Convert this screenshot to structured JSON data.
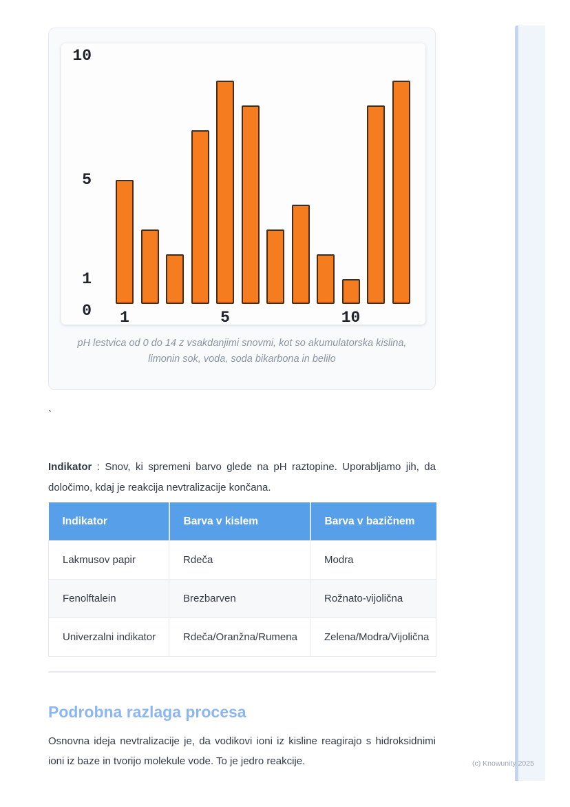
{
  "colors": {
    "bar_fill": "#F57D20",
    "bar_border": "#4A2B0E",
    "card_bg": "#F8FAFC",
    "card_border": "#E5EAF0",
    "caption_gray": "#8A94A4",
    "text_dark": "#333B47",
    "table_header_bg": "#57A0E9",
    "table_border": "#E5E9EE",
    "row_alt": "#F6F8FA",
    "divider": "#E7EAEE",
    "heading_blue": "#8CB6F2",
    "watermark_gray": "#9CA5B2",
    "rightbar_fill": "#F0F5FC",
    "rightbar_edge": "#C3D6ED"
  },
  "chart_data": {
    "type": "bar",
    "x": [
      1,
      2,
      3,
      4,
      5,
      6,
      7,
      8,
      9,
      10,
      11,
      12
    ],
    "values": [
      5,
      3,
      2,
      7,
      9,
      8,
      3,
      4,
      2,
      1,
      8,
      9
    ],
    "xticks": [
      1,
      5,
      10
    ],
    "yticks": [
      0,
      1,
      5,
      10
    ],
    "ylim": [
      0,
      10
    ],
    "grid": false,
    "legend": "none",
    "title": "",
    "xlabel": "",
    "ylabel": "",
    "bar_color": "#F57D20",
    "bar_border_color": "#4A2B0E"
  },
  "figure": {
    "caption_lines": [
      "pH lestvica od 0 do 14 z vsakdanjimi snovmi, kot so akumulatorska kislina,",
      "limonin sok, voda, soda bikarbona in belilo"
    ]
  },
  "stray_char": "`",
  "definition": {
    "term": "Indikator",
    "text": " : Snov, ki spremeni barvo glede na pH raztopine. Uporabljamo jih, da določimo, kdaj je reakcija nevtralizacije končana."
  },
  "table": {
    "headers": [
      "Indikator",
      "Barva v kislem",
      "Barva v bazičnem"
    ],
    "rows": [
      [
        "Lakmusov papir",
        "Rdeča",
        "Modra"
      ],
      [
        "Fenolftalein",
        "Brezbarven",
        "Rožnato-vijolična"
      ],
      [
        "Univerzalni indikator",
        "Rdeča/Oranžna/Rumena",
        "Zelena/Modra/Vijolična"
      ]
    ]
  },
  "section": {
    "heading": "Podrobna razlaga procesa",
    "paragraph": "Osnovna ideja nevtralizacije je, da vodikovi ioni iz kisline reagirajo s hidroksidnimi ioni iz baze in tvorijo molekule vode. To je jedro reakcije."
  },
  "footer": {
    "watermark": "(c) Knowunity 2025"
  }
}
